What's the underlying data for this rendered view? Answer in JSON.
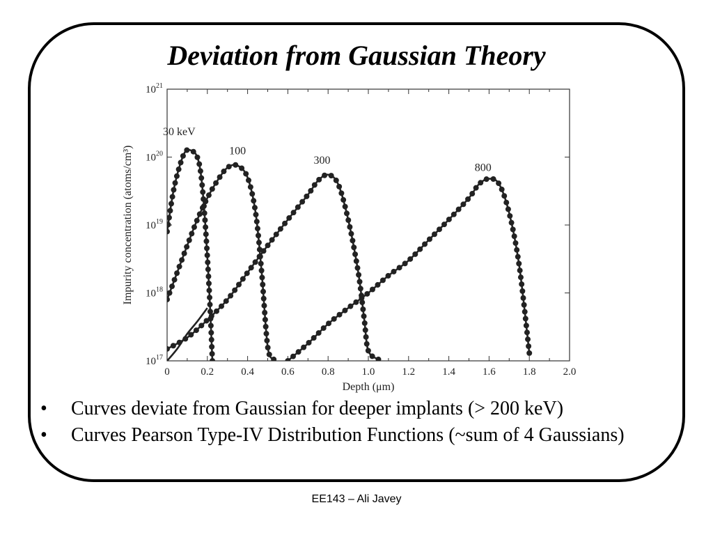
{
  "slide": {
    "title": "Deviation from Gaussian Theory",
    "bullets": [
      "Curves deviate from Gaussian for deeper implants (> 200 keV)",
      "Curves Pearson Type-IV Distribution Functions (~sum of 4 Gaussians)"
    ],
    "bullet_symbol": "•",
    "footer": "EE143 – Ali Javey"
  },
  "chart_data": {
    "type": "line",
    "title": "",
    "xlabel": "Depth (μm)",
    "ylabel": "Impurity concentration (atoms/cm³)",
    "xlim": [
      0,
      2.0
    ],
    "ylim": [
      1e+17,
      1e+21
    ],
    "yscale": "log",
    "grid": false,
    "x_ticks": [
      "0",
      "0.2",
      "0.4",
      "0.6",
      "0.8",
      "1.0",
      "1.2",
      "1.4",
      "1.6",
      "1.8",
      "2.0"
    ],
    "y_ticks": [
      {
        "base": "10",
        "exp": "17"
      },
      {
        "base": "10",
        "exp": "18"
      },
      {
        "base": "10",
        "exp": "19"
      },
      {
        "base": "10",
        "exp": "20"
      },
      {
        "base": "10",
        "exp": "21"
      }
    ],
    "line_color": "#222222",
    "series": [
      {
        "name": "30 keV",
        "style": "line+markers",
        "points": [
          [
            0.0,
            8e+18
          ],
          [
            0.03,
            3e+19
          ],
          [
            0.06,
            7e+19
          ],
          [
            0.09,
            1.2e+20
          ],
          [
            0.12,
            1.25e+20
          ],
          [
            0.15,
            1e+20
          ],
          [
            0.17,
            5e+19
          ],
          [
            0.19,
            1e+19
          ],
          [
            0.21,
            1e+18
          ],
          [
            0.225,
            1e+17
          ]
        ]
      },
      {
        "name": "100",
        "style": "line+markers",
        "points": [
          [
            0.0,
            8e+17
          ],
          [
            0.05,
            2e+18
          ],
          [
            0.1,
            5e+18
          ],
          [
            0.15,
            1.2e+19
          ],
          [
            0.2,
            2.5e+19
          ],
          [
            0.25,
            4.5e+19
          ],
          [
            0.3,
            7e+19
          ],
          [
            0.35,
            7.5e+19
          ],
          [
            0.4,
            5e+19
          ],
          [
            0.44,
            1.5e+19
          ],
          [
            0.47,
            2e+18
          ],
          [
            0.5,
            1.6e+17
          ],
          [
            0.53,
            1.05e+17
          ]
        ]
      },
      {
        "name": "300",
        "style": "line+markers",
        "points": [
          [
            0.0,
            1.5e+17
          ],
          [
            0.1,
            2.2e+17
          ],
          [
            0.2,
            4e+17
          ],
          [
            0.3,
            8e+17
          ],
          [
            0.4,
            2e+18
          ],
          [
            0.5,
            5e+18
          ],
          [
            0.6,
            1.2e+19
          ],
          [
            0.7,
            2.8e+19
          ],
          [
            0.75,
            4.5e+19
          ],
          [
            0.8,
            5.5e+19
          ],
          [
            0.85,
            4e+19
          ],
          [
            0.9,
            1.2e+19
          ],
          [
            0.95,
            2e+18
          ],
          [
            0.98,
            4e+17
          ],
          [
            1.0,
            1.4e+17
          ],
          [
            1.05,
            1.05e+17
          ]
        ]
      },
      {
        "name": "800",
        "style": "line+markers",
        "points": [
          [
            0.6,
            1e+17
          ],
          [
            0.7,
            1.8e+17
          ],
          [
            0.8,
            3.5e+17
          ],
          [
            0.9,
            6e+17
          ],
          [
            1.0,
            1e+18
          ],
          [
            1.1,
            1.8e+18
          ],
          [
            1.2,
            3e+18
          ],
          [
            1.3,
            6e+18
          ],
          [
            1.4,
            1.2e+19
          ],
          [
            1.5,
            2.5e+19
          ],
          [
            1.55,
            4e+19
          ],
          [
            1.6,
            4.8e+19
          ],
          [
            1.65,
            4e+19
          ],
          [
            1.7,
            1.5e+19
          ],
          [
            1.75,
            2.5e+18
          ],
          [
            1.8,
            1.3e+17
          ]
        ]
      },
      {
        "name": "",
        "style": "line",
        "points": [
          [
            0.0,
            1e+17
          ],
          [
            0.05,
            1.5e+17
          ],
          [
            0.1,
            2.5e+17
          ],
          [
            0.15,
            3.8e+17
          ],
          [
            0.2,
            6e+17
          ]
        ]
      }
    ],
    "annotations": [
      {
        "text": "30 keV",
        "x": 0.06,
        "y": 2.1e+20
      },
      {
        "text": "100",
        "x": 0.35,
        "y": 1.1e+20
      },
      {
        "text": "300",
        "x": 0.77,
        "y": 8e+19
      },
      {
        "text": "800",
        "x": 1.57,
        "y": 6.2e+19
      }
    ]
  }
}
